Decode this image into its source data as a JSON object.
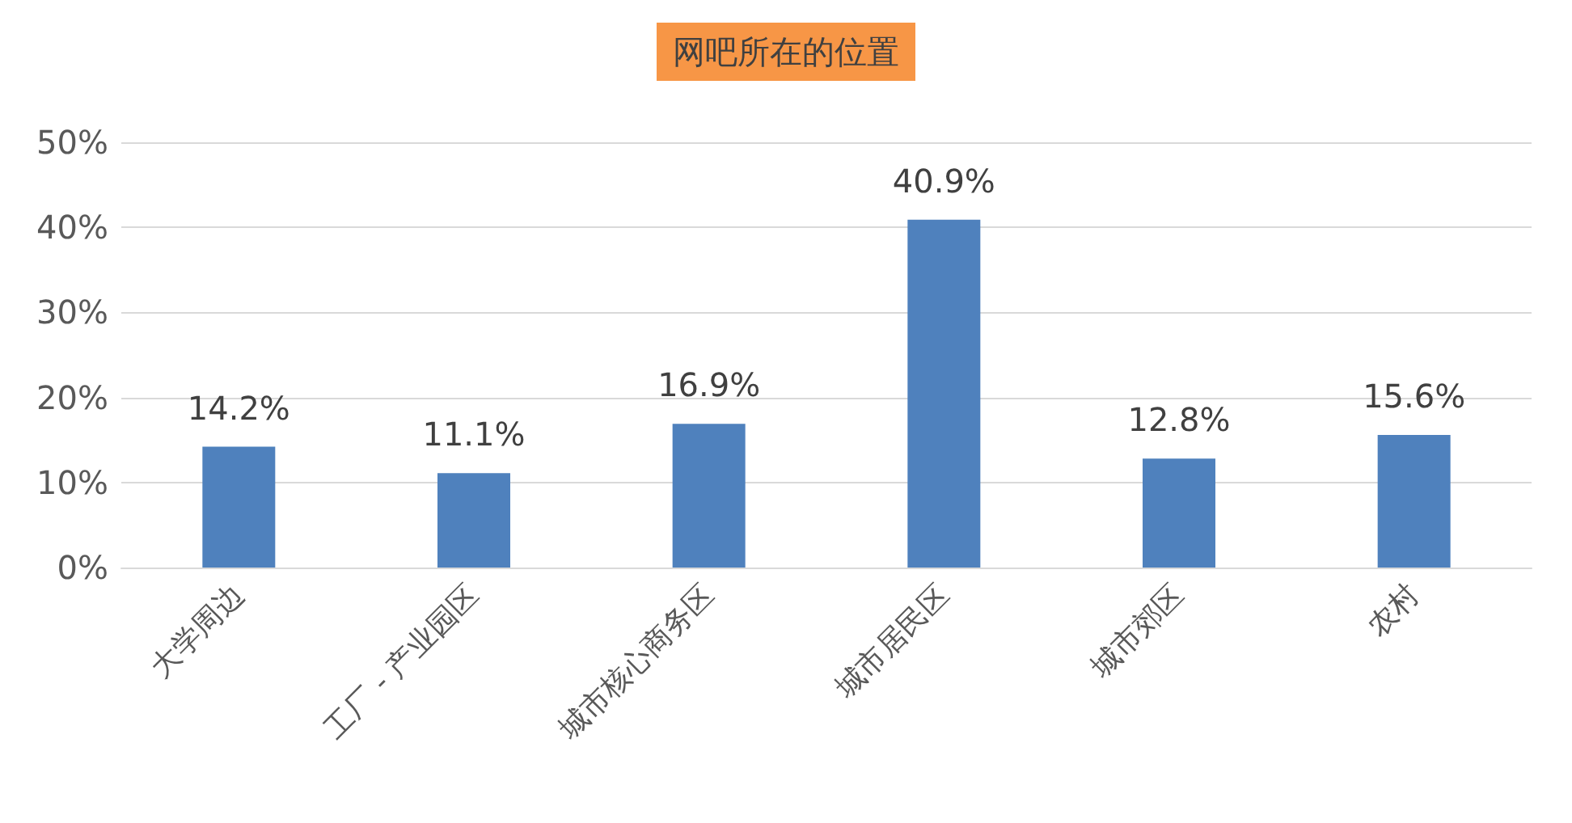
{
  "chart_data": {
    "type": "bar",
    "title": "网吧所在的位置",
    "categories": [
      "大学周边",
      "工厂 - 产业园区",
      "城市核心商务区",
      "城市居民区",
      "城市郊区",
      "农村"
    ],
    "values": [
      14.2,
      11.1,
      16.9,
      40.9,
      12.8,
      15.6
    ],
    "value_labels": [
      "14.2%",
      "11.1%",
      "16.9%",
      "40.9%",
      "12.8%",
      "15.6%"
    ],
    "color": "#4f81bd",
    "ylim": [
      0,
      50
    ],
    "yticks": [
      {
        "value": 0,
        "label": "0%"
      },
      {
        "value": 10,
        "label": "10%"
      },
      {
        "value": 20,
        "label": "20%"
      },
      {
        "value": 30,
        "label": "30%"
      },
      {
        "value": 40,
        "label": "40%"
      },
      {
        "value": 50,
        "label": "50%"
      }
    ],
    "grid": "y"
  }
}
